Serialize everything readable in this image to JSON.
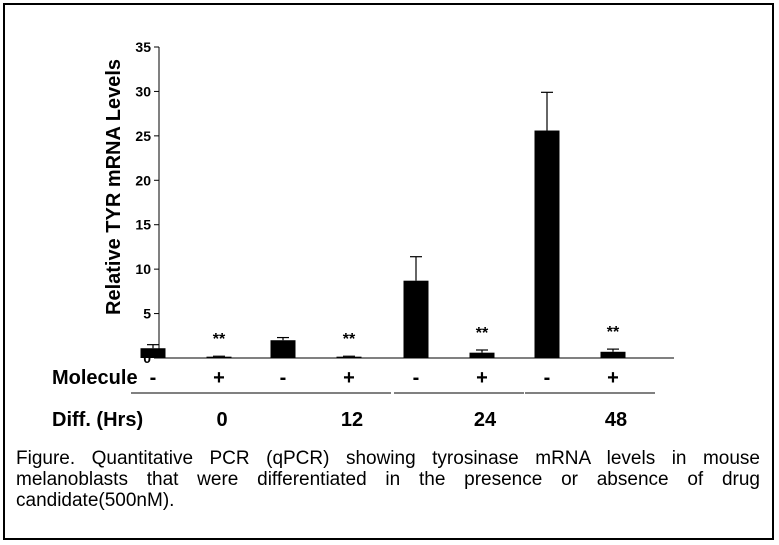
{
  "chart_data": {
    "type": "bar",
    "title": "",
    "xlabel": "",
    "ylabel": "Relative TYR mRNA Levels",
    "ylim": [
      0,
      35
    ],
    "yticks": [
      "0",
      "5",
      "10",
      "15",
      "20",
      "25",
      "30",
      "35"
    ],
    "groups": [
      {
        "label": "0",
        "bars": [
          {
            "treatment": "-",
            "value": 1.1,
            "error": 0.4,
            "annotation": ""
          },
          {
            "treatment": "+",
            "value": 0.15,
            "error": 0.05,
            "annotation": "**"
          }
        ]
      },
      {
        "label": "12",
        "bars": [
          {
            "treatment": "-",
            "value": 2.0,
            "error": 0.3,
            "annotation": ""
          },
          {
            "treatment": "+",
            "value": 0.15,
            "error": 0.05,
            "annotation": "**"
          }
        ]
      },
      {
        "label": "24",
        "bars": [
          {
            "treatment": "-",
            "value": 8.7,
            "error": 2.7,
            "annotation": ""
          },
          {
            "treatment": "+",
            "value": 0.6,
            "error": 0.3,
            "annotation": "**"
          }
        ]
      },
      {
        "label": "48",
        "bars": [
          {
            "treatment": "-",
            "value": 25.6,
            "error": 4.3,
            "annotation": ""
          },
          {
            "treatment": "+",
            "value": 0.7,
            "error": 0.3,
            "annotation": "**"
          }
        ]
      }
    ],
    "row_labels": {
      "treatment": "Molecule",
      "group": "Diff. (Hrs)"
    },
    "bar_color": "#000000"
  },
  "caption": "Figure. Quantitative PCR (qPCR) showing tyrosinase mRNA levels in mouse melanoblasts that were differentiated in the presence or absence of drug candidate(500nM)."
}
